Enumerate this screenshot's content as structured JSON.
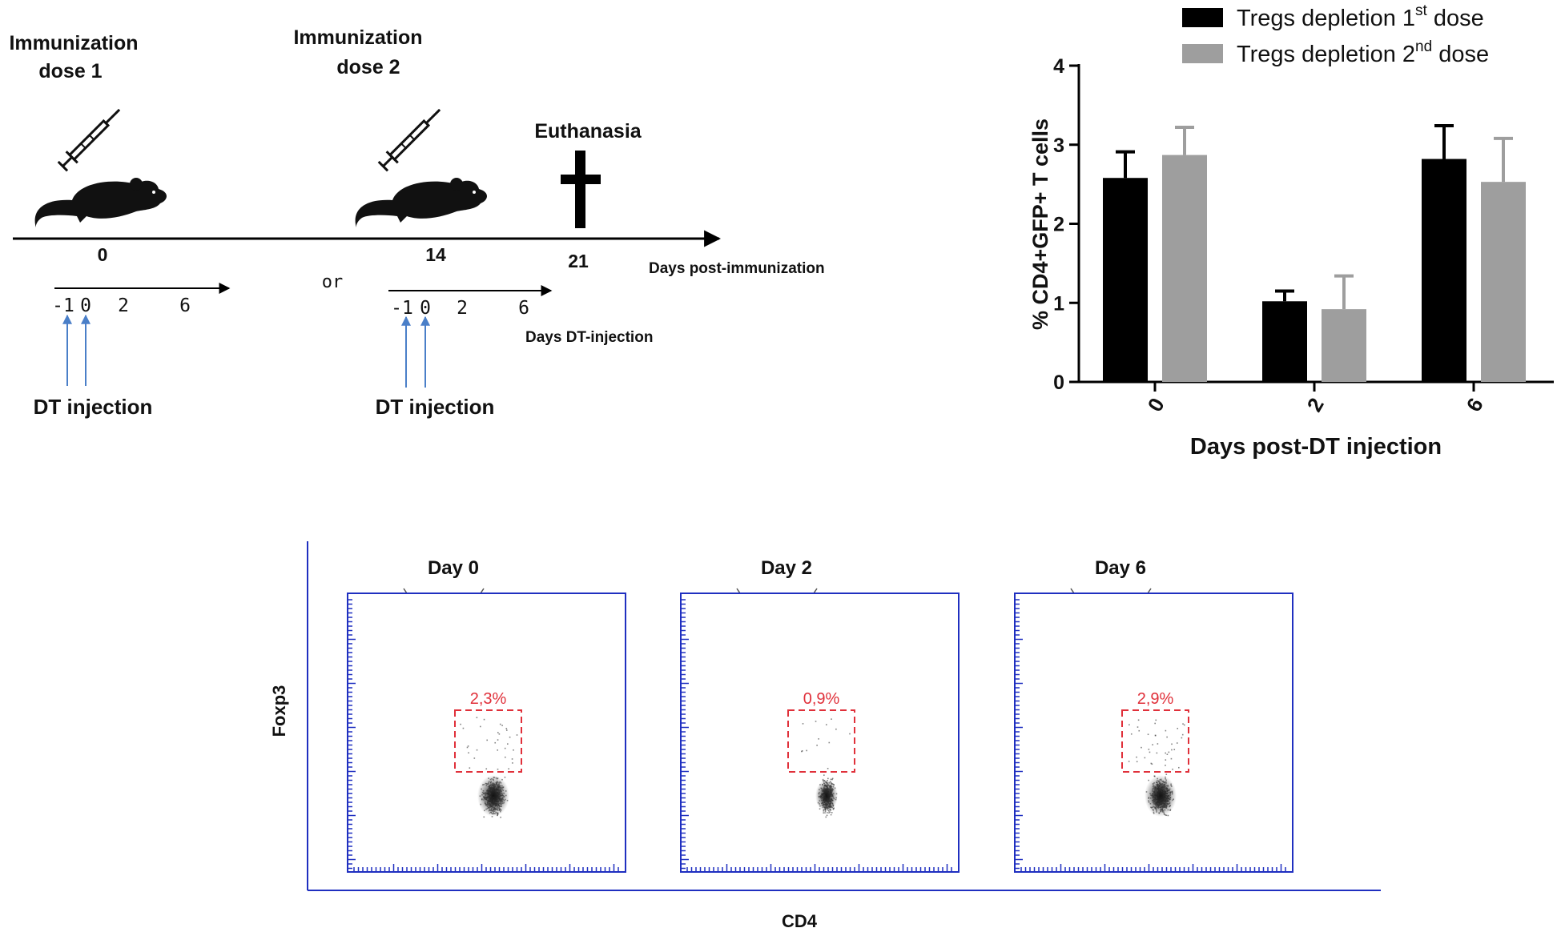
{
  "timeline": {
    "immunization_dose1": [
      "Immunization",
      "dose 1"
    ],
    "immunization_dose2": [
      "Immunization",
      "dose 2"
    ],
    "euthanasia": "Euthanasia",
    "day_labels": [
      "0",
      "14",
      "21"
    ],
    "axis_label": "Days post-immunization",
    "or_label": "or",
    "dt_ticks": [
      "-1",
      "0",
      "2",
      "6"
    ],
    "dt_axis_label": "Days DT-injection",
    "dt_injection_label": "DT injection"
  },
  "colors": {
    "first_dose": "#000000",
    "second_dose": "#9e9e9e",
    "arrow_blue": "#4a7fc8",
    "flow_axis": "#1f2fc0",
    "gate": "#e0303a"
  },
  "chart_data": [
    {
      "type": "bar",
      "categories": [
        "0",
        "2",
        "6"
      ],
      "series": [
        {
          "name": "Tregs depletion 1st dose",
          "name_base": "Tregs depletion 1",
          "name_sup": "st",
          "name_tail": " dose",
          "values": [
            2.58,
            1.02,
            2.82
          ],
          "errors": [
            0.33,
            0.13,
            0.42
          ]
        },
        {
          "name": "Tregs depletion 2nd dose",
          "name_base": "Tregs depletion 2",
          "name_sup": "nd",
          "name_tail": " dose",
          "values": [
            2.87,
            0.92,
            2.53
          ],
          "errors": [
            0.35,
            0.42,
            0.55
          ]
        }
      ],
      "ylabel": "% CD4+GFP+ T cells",
      "xlabel": "Days post-DT injection",
      "ylim": [
        0,
        4
      ],
      "yticks": [
        "0",
        "1",
        "2",
        "3",
        "4"
      ],
      "legend": "top-right"
    },
    {
      "type": "scatter",
      "description_xlabel": "CD4",
      "ylabel": "Foxp3",
      "xlabel": "CD4",
      "panels": [
        {
          "title": "Day 0",
          "gate_percent": "2,3%",
          "gate_value": 2.3
        },
        {
          "title": "Day 2",
          "gate_percent": "0,9%",
          "gate_value": 0.9
        },
        {
          "title": "Day 6",
          "gate_percent": "2,9%",
          "gate_value": 2.9
        }
      ]
    }
  ]
}
